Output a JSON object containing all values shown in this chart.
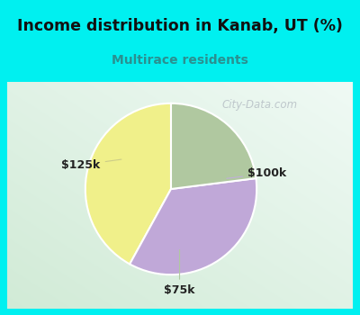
{
  "title": "Income distribution in Kanab, UT (%)",
  "subtitle": "Multirace residents",
  "title_color": "#111111",
  "subtitle_color": "#2a9090",
  "slices": [
    {
      "label": "$125k",
      "value": 42,
      "color": "#f0f08a"
    },
    {
      "label": "$100k",
      "value": 35,
      "color": "#c0a8d8"
    },
    {
      "label": "$75k",
      "value": 23,
      "color": "#b0c8a0"
    }
  ],
  "startangle": 90,
  "watermark": "City-Data.com",
  "cyan_color": "#00f0f0",
  "chart_bg_topleft": "#e8f8f4",
  "chart_bg_topright": "#f8feff",
  "chart_bg_bottom": "#c8e8d8"
}
